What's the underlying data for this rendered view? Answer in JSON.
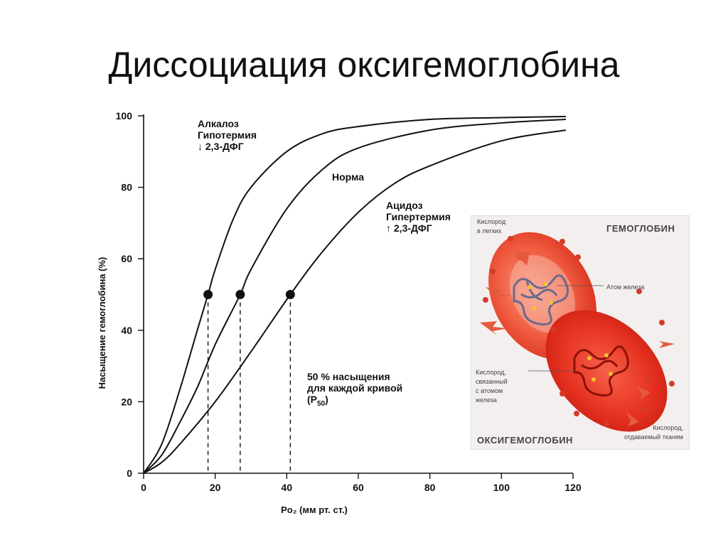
{
  "slide": {
    "title": "Диссоциация оксигемоглобина"
  },
  "chart_data": {
    "type": "line",
    "xlabel": "Po₂ (мм рт. ст.)",
    "ylabel": "Насыщение гемоглобина (%)",
    "xlim": [
      0,
      120
    ],
    "ylim": [
      0,
      100
    ],
    "xticks": [
      "0",
      "20",
      "40",
      "60",
      "80",
      "100",
      "120"
    ],
    "yticks": [
      "0",
      "20",
      "40",
      "60",
      "80",
      "100"
    ],
    "grid": false,
    "series": [
      {
        "name": "Алкалоз Гипотермия ↓ 2,3-ДФГ",
        "label_lines": [
          "Алкалоз",
          "Гипотермия",
          "↓ 2,3-ДФГ"
        ],
        "p50": 18,
        "x": [
          0,
          5,
          10,
          15,
          18,
          20,
          25,
          30,
          40,
          50,
          60,
          80,
          100,
          118
        ],
        "y": [
          0,
          8,
          23,
          40,
          50,
          57,
          71,
          80,
          90,
          95,
          97,
          99,
          99.5,
          99.8
        ]
      },
      {
        "name": "Норма",
        "label_lines": [
          "Норма"
        ],
        "p50": 27,
        "x": [
          0,
          5,
          10,
          15,
          20,
          27,
          30,
          40,
          50,
          60,
          80,
          100,
          118
        ],
        "y": [
          0,
          5,
          14,
          24,
          36,
          50,
          57,
          74,
          85,
          91,
          96,
          98,
          99
        ]
      },
      {
        "name": "Ацидоз Гипертермия ↑ 2,3-ДФГ",
        "label_lines": [
          "Ацидоз",
          "Гипертермия",
          "↑ 2,3-ДФГ"
        ],
        "p50": 41,
        "x": [
          0,
          5,
          10,
          20,
          30,
          41,
          50,
          60,
          70,
          80,
          100,
          118
        ],
        "y": [
          0,
          3,
          8,
          20,
          34,
          50,
          62,
          73,
          81,
          86,
          93,
          96
        ]
      }
    ],
    "annotation": {
      "lines": [
        "50 % насыщения",
        "для каждой кривой"
      ],
      "p50_text": "(P",
      "p50_sub": "50",
      "p50_close": ")"
    }
  },
  "inset": {
    "heading_top": "ГЕМОГЛОБИН",
    "heading_bottom": "ОКСИГЕМОГЛОБИН",
    "label_oxygen_lungs": [
      "Кислород",
      "в легких"
    ],
    "label_iron": "Атом железа",
    "label_bound": [
      "Кислород,",
      "связанный",
      "с атомом",
      "железа"
    ],
    "label_released": [
      "Кислород,",
      "отдаваемый тканям"
    ]
  }
}
